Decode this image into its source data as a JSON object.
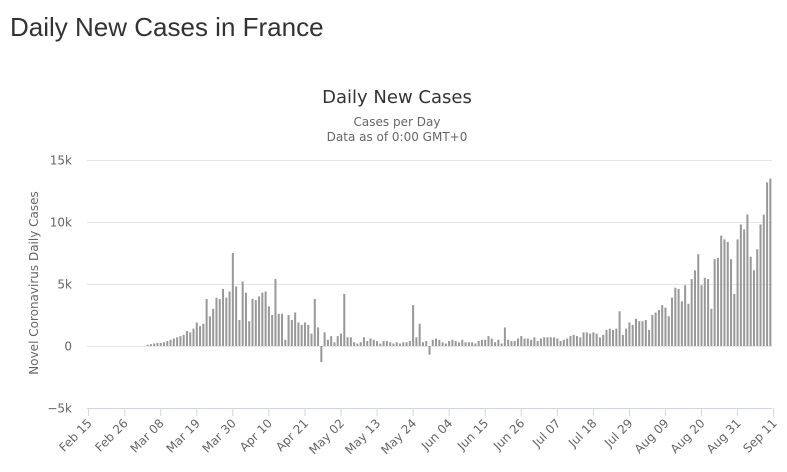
{
  "page": {
    "heading": "Daily New Cases in France"
  },
  "chart_data": {
    "type": "bar",
    "title": "Daily New Cases",
    "subtitle_lines": [
      "Cases per Day",
      "Data as of 0:00 GMT+0"
    ],
    "ylabel": "Novel Coronavirus Daily Cases",
    "xlabel": "",
    "ylim": [
      -5000,
      15000
    ],
    "yticks": [
      -5000,
      0,
      5000,
      10000,
      15000
    ],
    "ytick_labels": [
      "−5k",
      "0",
      "5k",
      "10k",
      "15k"
    ],
    "grid": true,
    "legend": "none",
    "bar_color": "#999999",
    "x_start": "2020-02-15",
    "x_tick_labels": [
      "Feb 15",
      "Feb 26",
      "Mar 08",
      "Mar 19",
      "Mar 30",
      "Apr 10",
      "Apr 21",
      "May 02",
      "May 13",
      "May 24",
      "Jun 04",
      "Jun 15",
      "Jun 26",
      "Jul 07",
      "Jul 18",
      "Jul 29",
      "Aug 09",
      "Aug 20",
      "Aug 31",
      "Sep 11"
    ],
    "values": [
      0,
      0,
      0,
      0,
      0,
      0,
      0,
      0,
      0,
      0,
      0,
      0,
      0,
      0,
      0,
      0,
      0,
      0,
      100,
      150,
      200,
      250,
      250,
      300,
      400,
      500,
      600,
      700,
      800,
      900,
      1200,
      1100,
      1400,
      1900,
      1600,
      1800,
      3800,
      2400,
      3000,
      3900,
      3800,
      4600,
      3900,
      4400,
      7500,
      4800,
      2100,
      5200,
      4300,
      2000,
      3800,
      3700,
      4000,
      4300,
      4400,
      3200,
      2500,
      5400,
      2600,
      2600,
      500,
      2500,
      2100,
      2700,
      1900,
      1700,
      1900,
      1700,
      1000,
      3800,
      1500,
      -1300,
      1100,
      500,
      800,
      300,
      800,
      1000,
      4200,
      700,
      700,
      300,
      200,
      300,
      700,
      400,
      600,
      500,
      400,
      200,
      400,
      400,
      300,
      200,
      300,
      200,
      300,
      300,
      400,
      3300,
      700,
      1800,
      300,
      400,
      -700,
      500,
      600,
      500,
      300,
      200,
      400,
      500,
      400,
      300,
      500,
      300,
      300,
      300,
      200,
      400,
      500,
      500,
      800,
      600,
      300,
      500,
      200,
      1500,
      500,
      400,
      400,
      600,
      800,
      600,
      600,
      500,
      700,
      400,
      600,
      700,
      700,
      700,
      700,
      600,
      400,
      500,
      600,
      800,
      900,
      800,
      700,
      1100,
      1100,
      1000,
      1100,
      1000,
      700,
      900,
      1300,
      1400,
      1300,
      1400,
      2800,
      900,
      1400,
      1900,
      1700,
      2200,
      2000,
      2000,
      2100,
      1300,
      2500,
      2700,
      2900,
      3300,
      3100,
      2400,
      3900,
      4700,
      4600,
      3600,
      4900,
      3400,
      5400,
      6100,
      7400,
      4900,
      5500,
      5400,
      3000,
      7000,
      7100,
      8900,
      8600,
      8400,
      7000,
      4200,
      8600,
      9800,
      9400,
      10600,
      7200,
      6100,
      7800,
      9800,
      10600,
      13200,
      13500
    ]
  }
}
